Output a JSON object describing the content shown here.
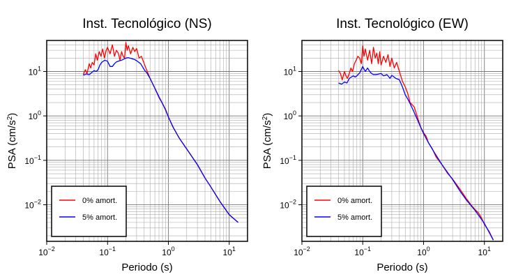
{
  "figure": {
    "background": "#ffffff",
    "series_colors": {
      "0% amort.": "#ff0000",
      "5% amort.": "#0000ff"
    }
  },
  "chart_data": [
    {
      "type": "line",
      "title": "Inst. Tecnológico (NS)",
      "xlabel": "Periodo (s)",
      "ylabel_main": "PSA (cm/s",
      "ylabel_sup": "2",
      "ylabel_tail": ")",
      "xscale": "log",
      "yscale": "log",
      "xlim": [
        0.01,
        20
      ],
      "ylim": [
        0.0015,
        50
      ],
      "grid": true,
      "legend_position": "lower-left",
      "x_ticks": [
        {
          "value": 0.01,
          "base": "10",
          "exp": "−2"
        },
        {
          "value": 0.1,
          "base": "10",
          "exp": "−1"
        },
        {
          "value": 1,
          "base": "10",
          "exp": "0"
        },
        {
          "value": 10,
          "base": "10",
          "exp": "1"
        }
      ],
      "y_ticks": [
        {
          "value": 0.01,
          "base": "10",
          "exp": "−2"
        },
        {
          "value": 0.1,
          "base": "10",
          "exp": "−1"
        },
        {
          "value": 1,
          "base": "10",
          "exp": "0"
        },
        {
          "value": 10,
          "base": "10",
          "exp": "1"
        }
      ],
      "series": [
        {
          "name": "0% amort.",
          "color": "#ff0000",
          "x": [
            0.04,
            0.043,
            0.046,
            0.05,
            0.053,
            0.056,
            0.06,
            0.064,
            0.068,
            0.073,
            0.078,
            0.083,
            0.089,
            0.095,
            0.1,
            0.11,
            0.12,
            0.13,
            0.14,
            0.15,
            0.16,
            0.17,
            0.18,
            0.19,
            0.2,
            0.21,
            0.22,
            0.24,
            0.26,
            0.28,
            0.3,
            0.33,
            0.36,
            0.4,
            0.45,
            0.5,
            0.6,
            0.7,
            0.8,
            0.9,
            1.0,
            1.2,
            1.5,
            2,
            3,
            4,
            5,
            7,
            10,
            14
          ],
          "y": [
            8.5,
            11,
            9,
            15,
            12,
            16,
            14,
            25,
            18,
            28,
            22,
            32,
            20,
            30,
            35,
            25,
            40,
            22,
            30,
            26,
            18,
            28,
            22,
            20,
            45,
            30,
            38,
            25,
            35,
            28,
            33,
            20,
            22,
            15,
            10,
            7,
            4.2,
            2.6,
            1.9,
            1.4,
            0.95,
            0.55,
            0.32,
            0.18,
            0.08,
            0.04,
            0.025,
            0.012,
            0.006,
            0.004
          ]
        },
        {
          "name": "5% amort.",
          "color": "#0000ff",
          "x": [
            0.04,
            0.045,
            0.05,
            0.055,
            0.06,
            0.065,
            0.07,
            0.075,
            0.08,
            0.09,
            0.1,
            0.11,
            0.12,
            0.13,
            0.14,
            0.15,
            0.17,
            0.2,
            0.22,
            0.25,
            0.28,
            0.3,
            0.35,
            0.4,
            0.45,
            0.5,
            0.6,
            0.7,
            0.8,
            0.9,
            1.0,
            1.2,
            1.5,
            2,
            3,
            4,
            5,
            7,
            10,
            14
          ],
          "y": [
            8.3,
            8.8,
            8.5,
            9.5,
            10.5,
            10,
            11,
            14,
            16,
            18,
            17,
            13,
            13,
            15,
            16.5,
            17,
            18,
            20,
            20.5,
            19.5,
            18.5,
            17.5,
            15,
            11,
            9,
            7,
            4.2,
            2.7,
            1.9,
            1.35,
            0.95,
            0.55,
            0.32,
            0.18,
            0.08,
            0.04,
            0.025,
            0.012,
            0.006,
            0.004
          ]
        }
      ]
    },
    {
      "type": "line",
      "title": "Inst. Tecnológico (EW)",
      "xlabel": "Periodo (s)",
      "ylabel_main": "PSA (cm/s",
      "ylabel_sup": "2",
      "ylabel_tail": ")",
      "xscale": "log",
      "yscale": "log",
      "xlim": [
        0.01,
        20
      ],
      "ylim": [
        0.0015,
        50
      ],
      "grid": true,
      "legend_position": "lower-left",
      "x_ticks": [
        {
          "value": 0.01,
          "base": "10",
          "exp": "−2"
        },
        {
          "value": 0.1,
          "base": "10",
          "exp": "−1"
        },
        {
          "value": 1,
          "base": "10",
          "exp": "0"
        },
        {
          "value": 10,
          "base": "10",
          "exp": "1"
        }
      ],
      "y_ticks": [
        {
          "value": 0.01,
          "base": "10",
          "exp": "−2"
        },
        {
          "value": 0.1,
          "base": "10",
          "exp": "−1"
        },
        {
          "value": 1,
          "base": "10",
          "exp": "0"
        },
        {
          "value": 10,
          "base": "10",
          "exp": "1"
        }
      ],
      "series": [
        {
          "name": "0% amort.",
          "color": "#ff0000",
          "x": [
            0.04,
            0.043,
            0.046,
            0.05,
            0.053,
            0.056,
            0.06,
            0.064,
            0.068,
            0.073,
            0.078,
            0.083,
            0.089,
            0.095,
            0.1,
            0.105,
            0.11,
            0.12,
            0.13,
            0.14,
            0.15,
            0.16,
            0.17,
            0.18,
            0.19,
            0.2,
            0.22,
            0.24,
            0.26,
            0.28,
            0.3,
            0.33,
            0.36,
            0.4,
            0.45,
            0.5,
            0.55,
            0.6,
            0.7,
            0.8,
            0.9,
            1.0,
            1.1,
            1.2,
            1.4,
            1.6,
            2,
            2.5,
            3,
            4,
            5,
            6,
            7,
            8,
            9,
            10,
            12,
            14
          ],
          "y": [
            10.5,
            9,
            6.5,
            10,
            8,
            7,
            9,
            12,
            10,
            15,
            18,
            22,
            20,
            15,
            38,
            22,
            32,
            18,
            30,
            15,
            35,
            20,
            26,
            15,
            28,
            14,
            22,
            16,
            24,
            13,
            20,
            12,
            16,
            10,
            6,
            4.5,
            3.2,
            2,
            1.6,
            0.9,
            0.55,
            0.42,
            0.35,
            0.25,
            0.18,
            0.12,
            0.08,
            0.05,
            0.038,
            0.022,
            0.014,
            0.01,
            0.0078,
            0.0065,
            0.005,
            0.0036,
            0.0025,
            0.0016
          ]
        },
        {
          "name": "5% amort.",
          "color": "#0000ff",
          "x": [
            0.04,
            0.045,
            0.05,
            0.055,
            0.06,
            0.065,
            0.07,
            0.075,
            0.08,
            0.09,
            0.1,
            0.11,
            0.12,
            0.13,
            0.14,
            0.15,
            0.17,
            0.2,
            0.22,
            0.25,
            0.28,
            0.3,
            0.35,
            0.4,
            0.45,
            0.5,
            0.55,
            0.6,
            0.7,
            0.8,
            0.9,
            1.0,
            1.2,
            1.5,
            2,
            3,
            4,
            5,
            7,
            10,
            14
          ],
          "y": [
            5.5,
            5.2,
            5.8,
            5.5,
            7,
            7.5,
            8,
            7.5,
            8,
            9.5,
            13,
            10,
            12,
            10,
            9,
            8.5,
            8.6,
            9,
            8,
            8.5,
            7,
            8.2,
            7,
            6.5,
            4.5,
            3,
            2.4,
            1.9,
            1.2,
            0.8,
            0.55,
            0.4,
            0.25,
            0.15,
            0.08,
            0.037,
            0.02,
            0.013,
            0.0075,
            0.0038,
            0.0016
          ]
        }
      ]
    }
  ]
}
